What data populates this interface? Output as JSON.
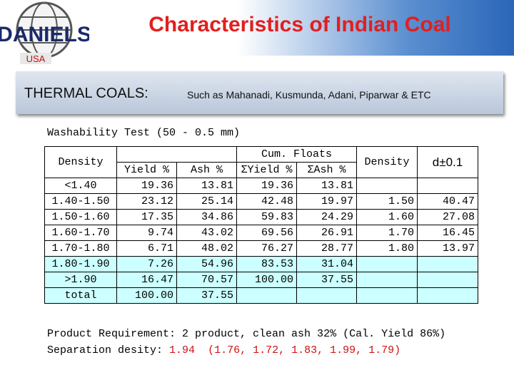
{
  "header": {
    "logo": "DANIELS",
    "logo_sub": "USA",
    "title": "Characteristics of Indian Coal"
  },
  "banner": {
    "label": "THERMAL COALS:",
    "text": "Such as Mahanadi, Kusmunda, Adani, Piparwar & ETC"
  },
  "table": {
    "caption": "Washability Test (50 - 0.5 mm)",
    "headers": {
      "density": "Density",
      "cum_floats": "Cum. Floats",
      "yield": "Yield %",
      "ash": "Ash %",
      "cum_yield": "ΣYield %",
      "cum_ash": "ΣAsh %",
      "density2": "Density",
      "range": "d±0.1"
    },
    "rows": [
      {
        "cells": [
          "<1.40",
          "19.36",
          "13.81",
          "19.36",
          "13.81"
        ]
      },
      {
        "cells": [
          "1.40-1.50",
          "23.12",
          "25.14",
          "42.48",
          "19.97"
        ],
        "side": [
          "1.50",
          "40.47"
        ]
      },
      {
        "cells": [
          "1.50-1.60",
          "17.35",
          "34.86",
          "59.83",
          "24.29"
        ],
        "side": [
          "1.60",
          "27.08"
        ]
      },
      {
        "cells": [
          "1.60-1.70",
          "9.74",
          "43.02",
          "69.56",
          "26.91"
        ],
        "side": [
          "1.70",
          "16.45"
        ]
      },
      {
        "cells": [
          "1.70-1.80",
          "6.71",
          "48.02",
          "76.27",
          "28.77"
        ],
        "side": [
          "1.80",
          "13.97"
        ]
      },
      {
        "cells": [
          "1.80-1.90",
          "7.26",
          "54.96",
          "83.53",
          "31.04"
        ]
      },
      {
        "cells": [
          ">1.90",
          "16.47",
          "70.57",
          "100.00",
          "37.55"
        ]
      },
      {
        "cells": [
          "total",
          "100.00",
          "37.55"
        ]
      }
    ]
  },
  "footer": {
    "requirement": "Product Requirement: 2 product, clean ash 32% (Cal. Yield 86%)",
    "separation_label": "Separation desity:",
    "separation_value": "1.94",
    "separation_list": "(1.76, 1.72, 1.83, 1.99, 1.79)"
  }
}
